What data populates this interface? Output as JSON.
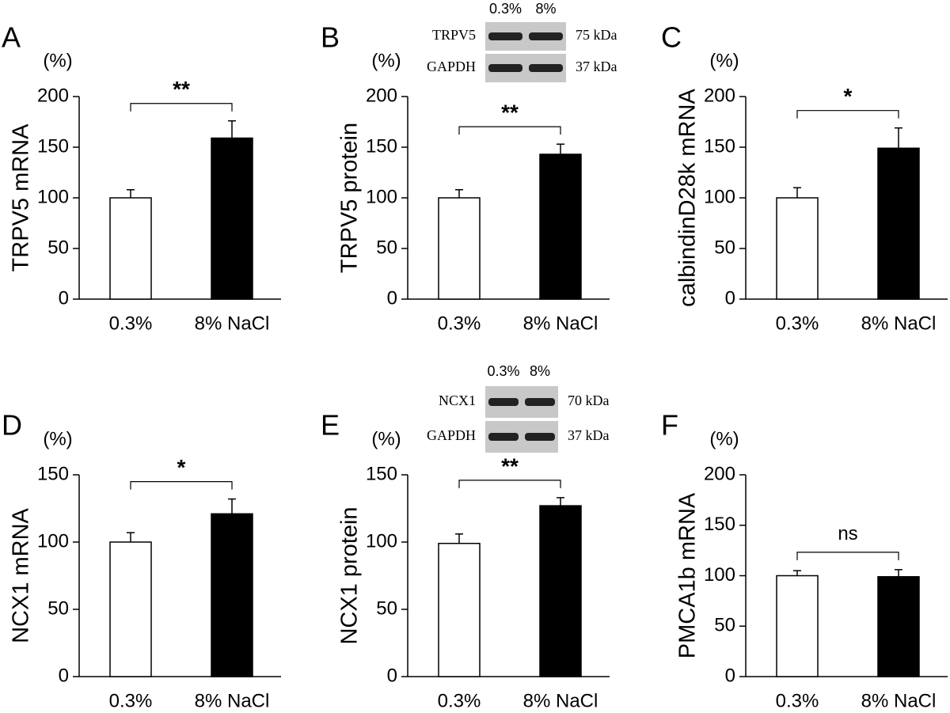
{
  "chart_data": [
    {
      "type": "bar",
      "panel": "A",
      "unit": "(%)",
      "y_label": "TRPV5 mRNA",
      "categories": [
        "0.3%",
        "8% NaCl"
      ],
      "values": [
        100,
        159
      ],
      "errors": [
        8,
        17
      ],
      "colors": [
        "#ffffff",
        "#000000"
      ],
      "significance": "**",
      "ylim": [
        0,
        200
      ],
      "yticks": [
        0,
        50,
        100,
        150,
        200
      ]
    },
    {
      "type": "bar",
      "panel": "B",
      "unit": "(%)",
      "y_label": "TRPV5 protein",
      "categories": [
        "0.3%",
        "8% NaCl"
      ],
      "values": [
        100,
        143
      ],
      "errors": [
        8,
        10
      ],
      "colors": [
        "#ffffff",
        "#000000"
      ],
      "significance": "**",
      "ylim": [
        0,
        200
      ],
      "yticks": [
        0,
        50,
        100,
        150,
        200
      ],
      "blot": {
        "lanes": [
          "0.3%",
          "8%"
        ],
        "rows": [
          {
            "protein": "TRPV5",
            "size": "75 kDa"
          },
          {
            "protein": "GAPDH",
            "size": "37 kDa"
          }
        ]
      }
    },
    {
      "type": "bar",
      "panel": "C",
      "unit": "(%)",
      "y_label": "calbindinD28k mRNA",
      "categories": [
        "0.3%",
        "8% NaCl"
      ],
      "values": [
        100,
        149
      ],
      "errors": [
        10,
        20
      ],
      "colors": [
        "#ffffff",
        "#000000"
      ],
      "significance": "*",
      "ylim": [
        0,
        200
      ],
      "yticks": [
        0,
        50,
        100,
        150,
        200
      ]
    },
    {
      "type": "bar",
      "panel": "D",
      "unit": "(%)",
      "y_label": "NCX1 mRNA",
      "categories": [
        "0.3%",
        "8% NaCl"
      ],
      "values": [
        100,
        121
      ],
      "errors": [
        7,
        11
      ],
      "colors": [
        "#ffffff",
        "#000000"
      ],
      "significance": "*",
      "ylim": [
        0,
        150
      ],
      "yticks": [
        0,
        50,
        100,
        150
      ]
    },
    {
      "type": "bar",
      "panel": "E",
      "unit": "(%)",
      "y_label": "NCX1 protein",
      "categories": [
        "0.3%",
        "8% NaCl"
      ],
      "values": [
        99,
        127
      ],
      "errors": [
        7,
        6
      ],
      "colors": [
        "#ffffff",
        "#000000"
      ],
      "significance": "**",
      "ylim": [
        0,
        150
      ],
      "yticks": [
        0,
        50,
        100,
        150
      ],
      "blot": {
        "lanes": [
          "0.3%",
          "8%"
        ],
        "rows": [
          {
            "protein": "NCX1",
            "size": "70 kDa"
          },
          {
            "protein": "GAPDH",
            "size": "37 kDa"
          }
        ]
      }
    },
    {
      "type": "bar",
      "panel": "F",
      "unit": "(%)",
      "y_label": "PMCA1b mRNA",
      "categories": [
        "0.3%",
        "8% NaCl"
      ],
      "values": [
        100,
        99
      ],
      "errors": [
        5,
        7
      ],
      "colors": [
        "#ffffff",
        "#000000"
      ],
      "significance": "ns",
      "ylim": [
        0,
        200
      ],
      "yticks": [
        0,
        50,
        100,
        150,
        200
      ]
    }
  ]
}
